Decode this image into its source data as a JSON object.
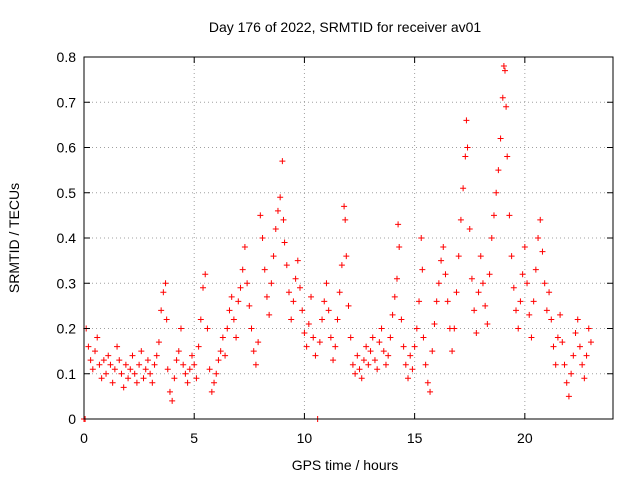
{
  "chart_data": {
    "type": "scatter",
    "title": "Day 176 of 2022, SRMTID for receiver av01",
    "xlabel": "GPS time / hours",
    "ylabel": "SRMTID / TECUs",
    "xlim": [
      0,
      24
    ],
    "ylim": [
      0,
      0.8
    ],
    "xticks": [
      0,
      5,
      10,
      15,
      20
    ],
    "xtick_labels": [
      "0",
      "5",
      "10",
      "15",
      "20"
    ],
    "yticks": [
      0,
      0.1,
      0.2,
      0.3,
      0.4,
      0.5,
      0.6,
      0.7,
      0.8
    ],
    "ytick_labels": [
      "0",
      "0.1",
      "0.2",
      "0.3",
      "0.4",
      "0.5",
      "0.6",
      "0.7",
      "0.8"
    ],
    "grid": true,
    "marker": "+",
    "series_color": "#ff0000",
    "series": [
      {
        "name": "SRMTID",
        "points": [
          [
            0.0,
            0.0
          ],
          [
            0.05,
            0.0
          ],
          [
            0.1,
            0.2
          ],
          [
            0.2,
            0.16
          ],
          [
            0.3,
            0.13
          ],
          [
            0.4,
            0.11
          ],
          [
            0.5,
            0.15
          ],
          [
            0.6,
            0.18
          ],
          [
            0.7,
            0.12
          ],
          [
            0.8,
            0.09
          ],
          [
            0.9,
            0.13
          ],
          [
            1.0,
            0.1
          ],
          [
            1.1,
            0.14
          ],
          [
            1.2,
            0.12
          ],
          [
            1.3,
            0.08
          ],
          [
            1.4,
            0.11
          ],
          [
            1.5,
            0.16
          ],
          [
            1.6,
            0.13
          ],
          [
            1.7,
            0.1
          ],
          [
            1.8,
            0.07
          ],
          [
            1.9,
            0.12
          ],
          [
            2.0,
            0.09
          ],
          [
            2.1,
            0.11
          ],
          [
            2.2,
            0.14
          ],
          [
            2.3,
            0.1
          ],
          [
            2.4,
            0.08
          ],
          [
            2.5,
            0.12
          ],
          [
            2.6,
            0.15
          ],
          [
            2.7,
            0.09
          ],
          [
            2.8,
            0.11
          ],
          [
            2.9,
            0.13
          ],
          [
            3.0,
            0.1
          ],
          [
            3.1,
            0.08
          ],
          [
            3.2,
            0.12
          ],
          [
            3.3,
            0.14
          ],
          [
            3.4,
            0.17
          ],
          [
            3.5,
            0.24
          ],
          [
            3.6,
            0.28
          ],
          [
            3.7,
            0.3
          ],
          [
            3.75,
            0.22
          ],
          [
            3.8,
            0.11
          ],
          [
            3.9,
            0.06
          ],
          [
            4.0,
            0.04
          ],
          [
            4.1,
            0.09
          ],
          [
            4.2,
            0.13
          ],
          [
            4.3,
            0.15
          ],
          [
            4.4,
            0.2
          ],
          [
            4.5,
            0.12
          ],
          [
            4.6,
            0.1
          ],
          [
            4.7,
            0.08
          ],
          [
            4.8,
            0.11
          ],
          [
            4.9,
            0.14
          ],
          [
            5.0,
            0.12
          ],
          [
            5.1,
            0.09
          ],
          [
            5.2,
            0.16
          ],
          [
            5.3,
            0.22
          ],
          [
            5.4,
            0.29
          ],
          [
            5.5,
            0.32
          ],
          [
            5.6,
            0.2
          ],
          [
            5.7,
            0.11
          ],
          [
            5.8,
            0.06
          ],
          [
            5.9,
            0.08
          ],
          [
            6.0,
            0.1
          ],
          [
            6.1,
            0.13
          ],
          [
            6.2,
            0.15
          ],
          [
            6.3,
            0.18
          ],
          [
            6.4,
            0.14
          ],
          [
            6.5,
            0.2
          ],
          [
            6.6,
            0.24
          ],
          [
            6.7,
            0.27
          ],
          [
            6.8,
            0.22
          ],
          [
            6.9,
            0.18
          ],
          [
            7.0,
            0.26
          ],
          [
            7.1,
            0.29
          ],
          [
            7.2,
            0.33
          ],
          [
            7.3,
            0.38
          ],
          [
            7.4,
            0.3
          ],
          [
            7.5,
            0.25
          ],
          [
            7.6,
            0.2
          ],
          [
            7.7,
            0.15
          ],
          [
            7.8,
            0.12
          ],
          [
            7.9,
            0.17
          ],
          [
            8.0,
            0.45
          ],
          [
            8.1,
            0.4
          ],
          [
            8.2,
            0.33
          ],
          [
            8.3,
            0.27
          ],
          [
            8.4,
            0.23
          ],
          [
            8.5,
            0.3
          ],
          [
            8.6,
            0.36
          ],
          [
            8.7,
            0.42
          ],
          [
            8.8,
            0.46
          ],
          [
            8.9,
            0.49
          ],
          [
            9.0,
            0.57
          ],
          [
            9.05,
            0.44
          ],
          [
            9.1,
            0.39
          ],
          [
            9.2,
            0.34
          ],
          [
            9.3,
            0.28
          ],
          [
            9.4,
            0.22
          ],
          [
            9.5,
            0.26
          ],
          [
            9.6,
            0.31
          ],
          [
            9.7,
            0.35
          ],
          [
            9.8,
            0.29
          ],
          [
            9.9,
            0.24
          ],
          [
            10.0,
            0.19
          ],
          [
            10.1,
            0.16
          ],
          [
            10.2,
            0.21
          ],
          [
            10.3,
            0.27
          ],
          [
            10.4,
            0.18
          ],
          [
            10.5,
            0.14
          ],
          [
            10.6,
            0.0
          ],
          [
            10.7,
            0.17
          ],
          [
            10.8,
            0.22
          ],
          [
            10.9,
            0.26
          ],
          [
            11.0,
            0.3
          ],
          [
            11.1,
            0.24
          ],
          [
            11.2,
            0.18
          ],
          [
            11.3,
            0.13
          ],
          [
            11.4,
            0.16
          ],
          [
            11.5,
            0.22
          ],
          [
            11.6,
            0.28
          ],
          [
            11.7,
            0.34
          ],
          [
            11.8,
            0.47
          ],
          [
            11.85,
            0.44
          ],
          [
            11.9,
            0.36
          ],
          [
            12.0,
            0.25
          ],
          [
            12.1,
            0.18
          ],
          [
            12.2,
            0.12
          ],
          [
            12.3,
            0.1
          ],
          [
            12.4,
            0.14
          ],
          [
            12.5,
            0.11
          ],
          [
            12.6,
            0.09
          ],
          [
            12.7,
            0.13
          ],
          [
            12.8,
            0.16
          ],
          [
            12.9,
            0.12
          ],
          [
            13.0,
            0.15
          ],
          [
            13.1,
            0.18
          ],
          [
            13.2,
            0.13
          ],
          [
            13.3,
            0.11
          ],
          [
            13.4,
            0.17
          ],
          [
            13.5,
            0.2
          ],
          [
            13.6,
            0.15
          ],
          [
            13.7,
            0.12
          ],
          [
            13.8,
            0.14
          ],
          [
            13.9,
            0.18
          ],
          [
            14.0,
            0.23
          ],
          [
            14.1,
            0.27
          ],
          [
            14.2,
            0.31
          ],
          [
            14.25,
            0.43
          ],
          [
            14.3,
            0.38
          ],
          [
            14.4,
            0.22
          ],
          [
            14.5,
            0.16
          ],
          [
            14.6,
            0.12
          ],
          [
            14.7,
            0.09
          ],
          [
            14.8,
            0.14
          ],
          [
            14.9,
            0.11
          ],
          [
            15.0,
            0.16
          ],
          [
            15.1,
            0.2
          ],
          [
            15.2,
            0.26
          ],
          [
            15.3,
            0.4
          ],
          [
            15.35,
            0.33
          ],
          [
            15.4,
            0.18
          ],
          [
            15.5,
            0.12
          ],
          [
            15.6,
            0.08
          ],
          [
            15.7,
            0.06
          ],
          [
            15.8,
            0.15
          ],
          [
            15.9,
            0.21
          ],
          [
            16.0,
            0.26
          ],
          [
            16.1,
            0.3
          ],
          [
            16.2,
            0.35
          ],
          [
            16.3,
            0.38
          ],
          [
            16.4,
            0.32
          ],
          [
            16.5,
            0.26
          ],
          [
            16.6,
            0.2
          ],
          [
            16.7,
            0.15
          ],
          [
            16.8,
            0.2
          ],
          [
            16.9,
            0.28
          ],
          [
            17.0,
            0.36
          ],
          [
            17.1,
            0.44
          ],
          [
            17.2,
            0.51
          ],
          [
            17.3,
            0.58
          ],
          [
            17.35,
            0.66
          ],
          [
            17.4,
            0.6
          ],
          [
            17.5,
            0.42
          ],
          [
            17.6,
            0.31
          ],
          [
            17.7,
            0.24
          ],
          [
            17.8,
            0.19
          ],
          [
            17.9,
            0.28
          ],
          [
            18.0,
            0.36
          ],
          [
            18.1,
            0.3
          ],
          [
            18.2,
            0.25
          ],
          [
            18.3,
            0.21
          ],
          [
            18.4,
            0.32
          ],
          [
            18.5,
            0.4
          ],
          [
            18.6,
            0.45
          ],
          [
            18.7,
            0.5
          ],
          [
            18.8,
            0.55
          ],
          [
            18.9,
            0.62
          ],
          [
            19.0,
            0.71
          ],
          [
            19.05,
            0.78
          ],
          [
            19.1,
            0.77
          ],
          [
            19.15,
            0.69
          ],
          [
            19.2,
            0.58
          ],
          [
            19.3,
            0.45
          ],
          [
            19.4,
            0.36
          ],
          [
            19.5,
            0.29
          ],
          [
            19.6,
            0.24
          ],
          [
            19.7,
            0.2
          ],
          [
            19.8,
            0.26
          ],
          [
            19.9,
            0.32
          ],
          [
            20.0,
            0.38
          ],
          [
            20.1,
            0.3
          ],
          [
            20.2,
            0.23
          ],
          [
            20.3,
            0.18
          ],
          [
            20.4,
            0.26
          ],
          [
            20.5,
            0.33
          ],
          [
            20.6,
            0.4
          ],
          [
            20.7,
            0.44
          ],
          [
            20.8,
            0.37
          ],
          [
            20.9,
            0.3
          ],
          [
            21.0,
            0.24
          ],
          [
            21.1,
            0.28
          ],
          [
            21.2,
            0.22
          ],
          [
            21.3,
            0.16
          ],
          [
            21.4,
            0.12
          ],
          [
            21.5,
            0.18
          ],
          [
            21.6,
            0.23
          ],
          [
            21.7,
            0.17
          ],
          [
            21.8,
            0.12
          ],
          [
            21.9,
            0.08
          ],
          [
            22.0,
            0.05
          ],
          [
            22.1,
            0.1
          ],
          [
            22.2,
            0.14
          ],
          [
            22.3,
            0.19
          ],
          [
            22.4,
            0.22
          ],
          [
            22.5,
            0.16
          ],
          [
            22.6,
            0.12
          ],
          [
            22.7,
            0.09
          ],
          [
            22.8,
            0.14
          ],
          [
            22.9,
            0.2
          ],
          [
            23.0,
            0.17
          ]
        ]
      }
    ]
  }
}
